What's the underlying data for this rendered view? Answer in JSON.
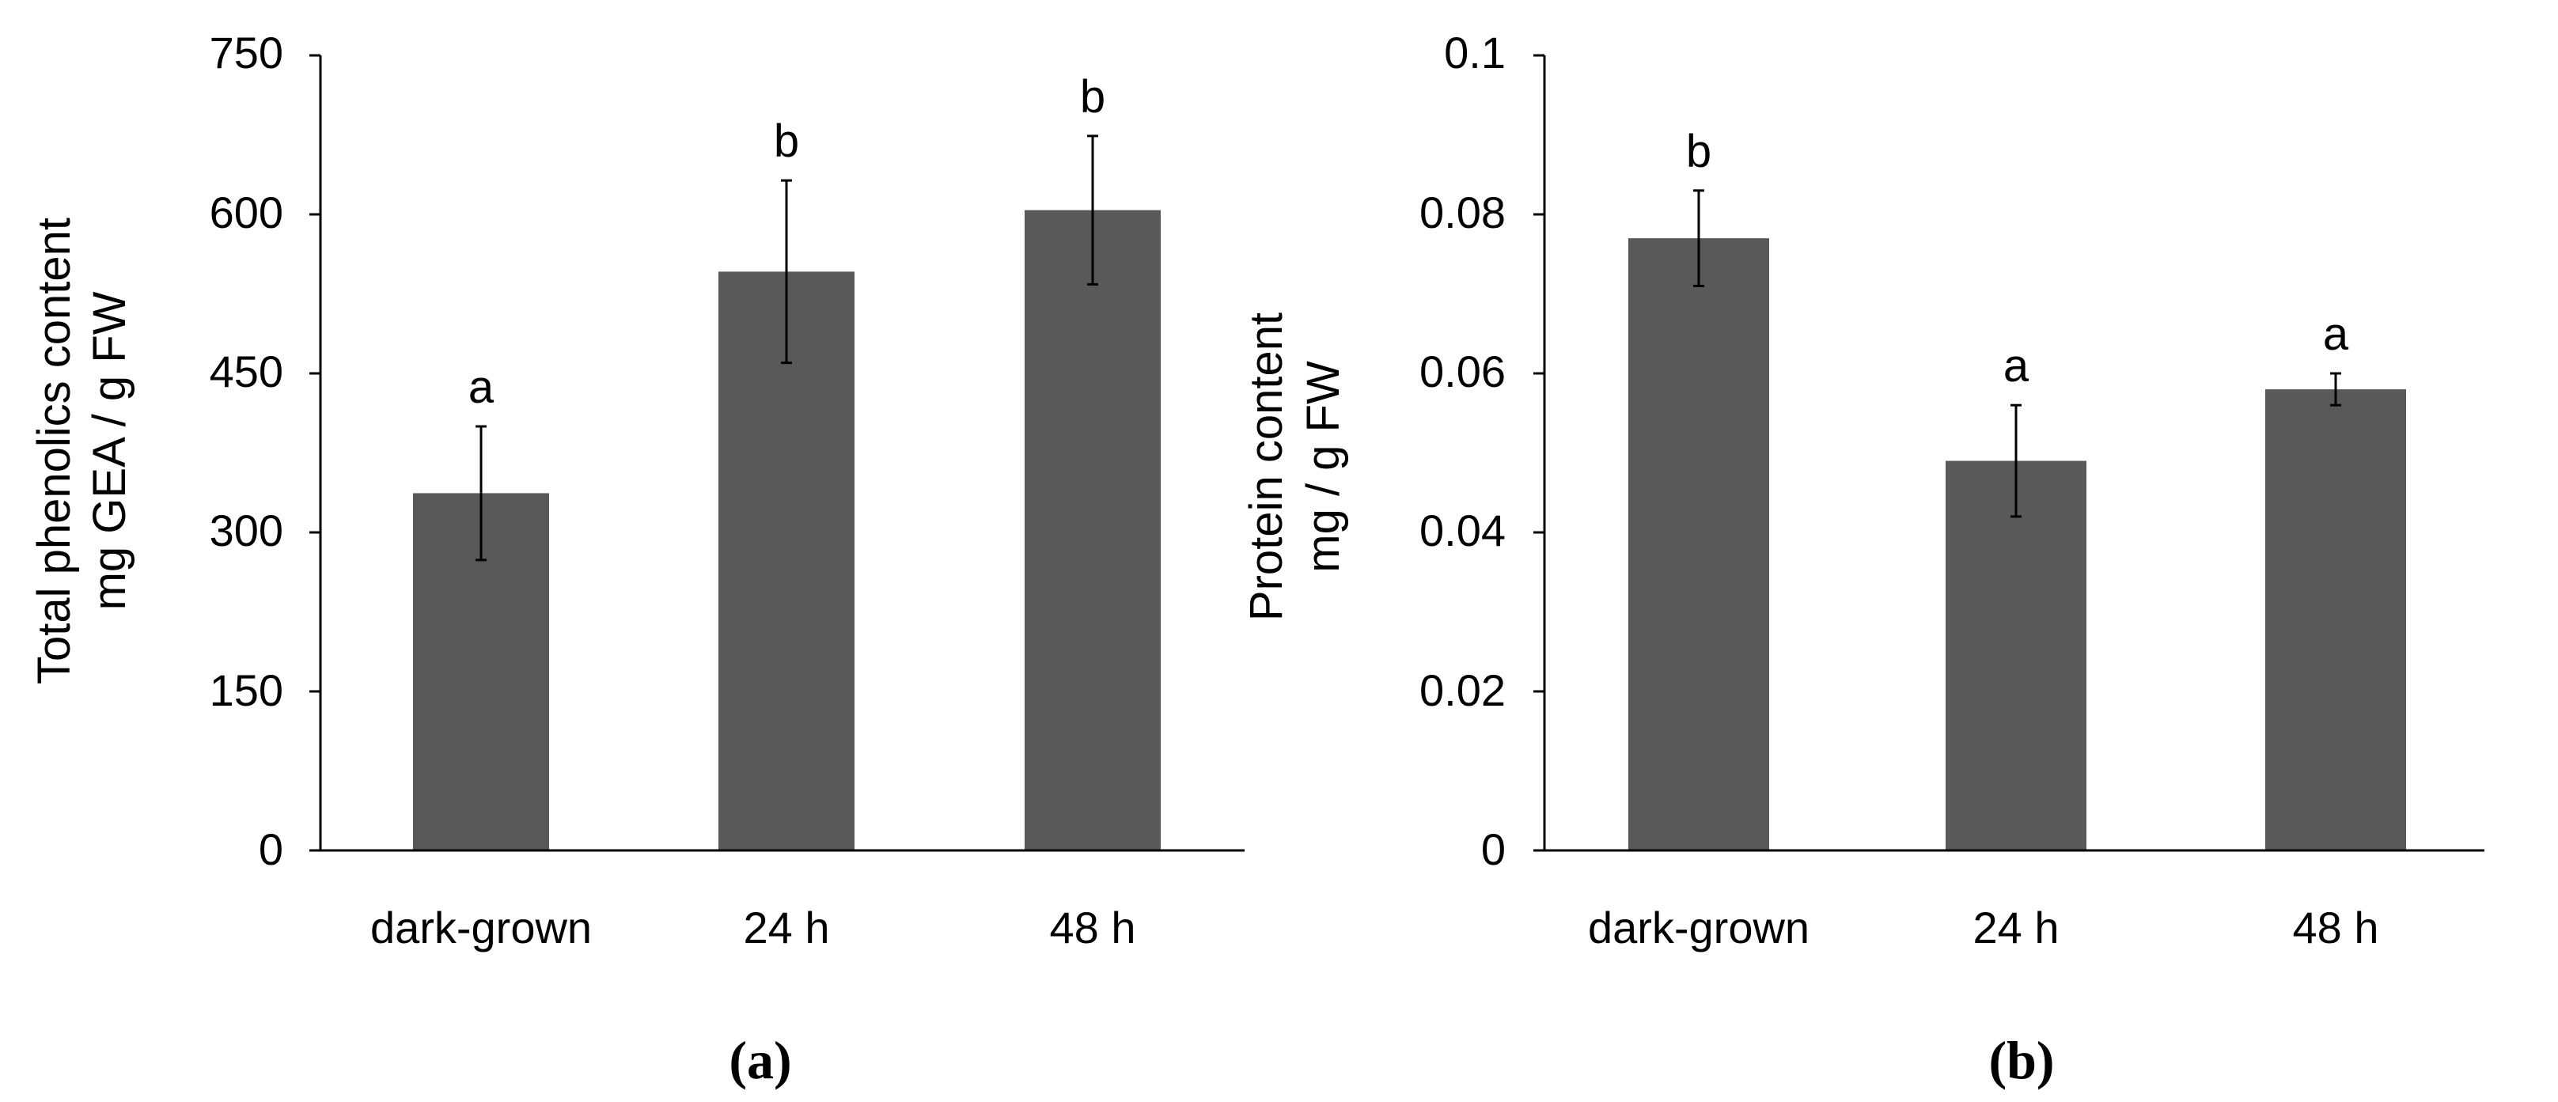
{
  "bar_color": "#595959",
  "axis_color": "#000000",
  "chart_data": [
    {
      "type": "bar",
      "panel_label": "(a)",
      "title": "",
      "xlabel": "",
      "ylabel_lines": [
        "Total phenolics content",
        "mg GEA / g FW"
      ],
      "ylim": [
        0,
        750
      ],
      "yticks": [
        0,
        150,
        300,
        450,
        600,
        750
      ],
      "ytick_labels": [
        "0",
        "150",
        "300",
        "450",
        "600",
        "750"
      ],
      "categories": [
        "dark-grown",
        "24 h",
        "48 h"
      ],
      "values": [
        337,
        546,
        604
      ],
      "errors": [
        63,
        86,
        70
      ],
      "significance": [
        "a",
        "b",
        "b"
      ],
      "grid": false,
      "legend": "none"
    },
    {
      "type": "bar",
      "panel_label": "(b)",
      "title": "",
      "xlabel": "",
      "ylabel_lines": [
        "Protein content",
        "mg / g FW"
      ],
      "ylim": [
        0,
        0.1
      ],
      "yticks": [
        0,
        0.02,
        0.04,
        0.06,
        0.08,
        0.1
      ],
      "ytick_labels": [
        "0",
        "0.02",
        "0.04",
        "0.06",
        "0.08",
        "0.1"
      ],
      "categories": [
        "dark-grown",
        "24 h",
        "48 h"
      ],
      "values": [
        0.077,
        0.049,
        0.058
      ],
      "errors": [
        0.006,
        0.007,
        0.002
      ],
      "significance": [
        "b",
        "a",
        "a"
      ],
      "grid": false,
      "legend": "none"
    }
  ]
}
